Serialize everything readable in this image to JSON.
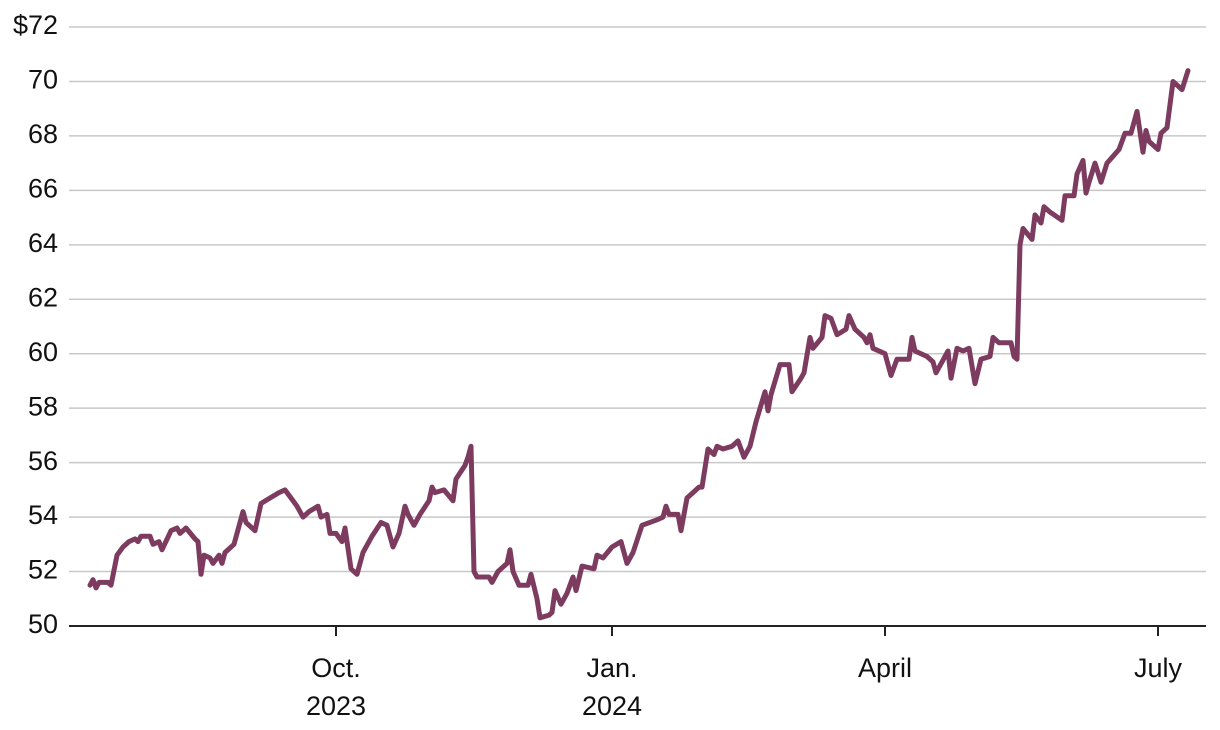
{
  "chart_data": {
    "type": "line",
    "x": [
      10,
      11,
      12,
      13,
      16,
      17,
      19,
      21,
      23,
      25,
      26,
      27,
      30,
      31,
      33,
      34,
      37,
      39,
      40,
      42,
      45,
      46,
      47,
      48,
      50,
      51,
      53,
      54,
      55,
      58,
      61,
      62,
      65,
      67,
      70,
      73,
      75,
      77,
      79,
      81,
      83,
      86,
      87,
      89,
      90,
      92,
      94,
      95,
      97,
      99,
      101,
      104,
      107,
      109,
      111,
      113,
      115,
      116,
      118,
      120,
      123,
      124,
      125,
      128,
      131,
      132,
      135,
      136,
      137,
      138,
      139,
      143,
      144,
      146,
      149,
      150,
      151,
      153,
      156,
      157,
      159,
      160,
      163,
      164,
      165,
      167,
      169,
      171,
      172,
      174,
      178,
      179,
      181,
      184,
      187,
      189,
      191,
      194,
      199,
      201,
      202,
      203,
      206,
      207,
      209,
      211,
      213,
      214,
      216,
      218,
      219,
      221,
      224,
      226,
      228,
      230,
      232,
      235,
      236,
      237,
      240,
      243,
      244,
      247,
      248,
      250,
      251,
      254,
      255,
      257,
      259,
      262,
      263,
      265,
      268,
      269,
      270,
      271,
      275,
      277,
      278,
      279,
      283,
      284,
      285,
      289,
      291,
      292,
      294,
      296,
      297,
      299,
      301,
      303,
      305,
      307,
      310,
      311,
      313,
      317,
      318,
      319,
      320,
      321,
      324,
      325,
      327,
      328,
      330,
      334,
      335,
      338,
      339,
      341,
      342,
      343,
      345,
      347,
      349,
      353,
      355,
      357,
      359,
      361,
      362,
      363,
      366,
      367,
      369,
      371,
      373,
      374,
      376
    ],
    "series": [
      {
        "color": "#7d3c5f",
        "values": [
          51.5,
          51.7,
          51.4,
          51.6,
          51.6,
          51.5,
          52.6,
          52.9,
          53.1,
          53.2,
          53.1,
          53.3,
          53.3,
          53.0,
          53.1,
          52.8,
          53.5,
          53.6,
          53.4,
          53.6,
          53.2,
          53.1,
          51.9,
          52.6,
          52.5,
          52.3,
          52.6,
          52.3,
          52.7,
          53.0,
          54.2,
          53.8,
          53.5,
          54.5,
          54.7,
          54.9,
          55.0,
          54.7,
          54.4,
          54.0,
          54.2,
          54.4,
          54.0,
          54.1,
          53.4,
          53.4,
          53.1,
          53.6,
          52.1,
          51.9,
          52.7,
          53.3,
          53.8,
          53.7,
          52.9,
          53.4,
          54.4,
          54.1,
          53.7,
          54.1,
          54.6,
          55.1,
          54.9,
          55.0,
          54.6,
          55.4,
          55.9,
          56.2,
          56.6,
          52.0,
          51.8,
          51.8,
          51.6,
          52.0,
          52.3,
          52.8,
          52.0,
          51.5,
          51.5,
          51.9,
          51.0,
          50.3,
          50.4,
          50.5,
          51.3,
          50.8,
          51.2,
          51.8,
          51.3,
          52.2,
          52.1,
          52.6,
          52.5,
          52.9,
          53.1,
          52.3,
          52.7,
          53.7,
          53.9,
          54.0,
          54.4,
          54.1,
          54.1,
          53.5,
          54.7,
          54.9,
          55.1,
          55.1,
          56.5,
          56.3,
          56.6,
          56.5,
          56.6,
          56.8,
          56.2,
          56.6,
          57.5,
          58.6,
          57.9,
          58.5,
          59.6,
          59.6,
          58.6,
          59.1,
          59.3,
          60.6,
          60.2,
          60.6,
          61.4,
          61.3,
          60.7,
          60.9,
          61.4,
          60.9,
          60.6,
          60.4,
          60.7,
          60.2,
          60.0,
          59.2,
          59.5,
          59.8,
          59.8,
          60.6,
          60.1,
          59.9,
          59.7,
          59.3,
          59.7,
          60.1,
          59.1,
          60.2,
          60.1,
          60.2,
          58.9,
          59.8,
          59.9,
          60.6,
          60.4,
          60.4,
          59.9,
          59.8,
          64.0,
          64.6,
          64.2,
          65.1,
          64.8,
          65.4,
          65.2,
          64.9,
          65.8,
          65.8,
          66.6,
          67.1,
          65.9,
          66.3,
          67.0,
          66.3,
          67.0,
          67.5,
          68.1,
          68.1,
          68.9,
          67.4,
          68.2,
          67.8,
          67.5,
          68.1,
          68.3,
          70.0,
          69.8,
          69.7,
          70.4
        ]
      }
    ],
    "xlim": [
      3,
      382
    ],
    "xticks": [
      {
        "value": 92,
        "label": [
          "Oct.",
          "2023"
        ]
      },
      {
        "value": 184,
        "label": [
          "Jan.",
          "2024"
        ]
      },
      {
        "value": 275,
        "label": [
          "April"
        ]
      },
      {
        "value": 366,
        "label": [
          "July"
        ]
      }
    ],
    "ylim": [
      50,
      72
    ],
    "yticks": [
      50,
      52,
      54,
      56,
      58,
      60,
      62,
      64,
      66,
      68,
      70,
      {
        "value": 72,
        "label": "$72"
      }
    ],
    "grid": true
  }
}
